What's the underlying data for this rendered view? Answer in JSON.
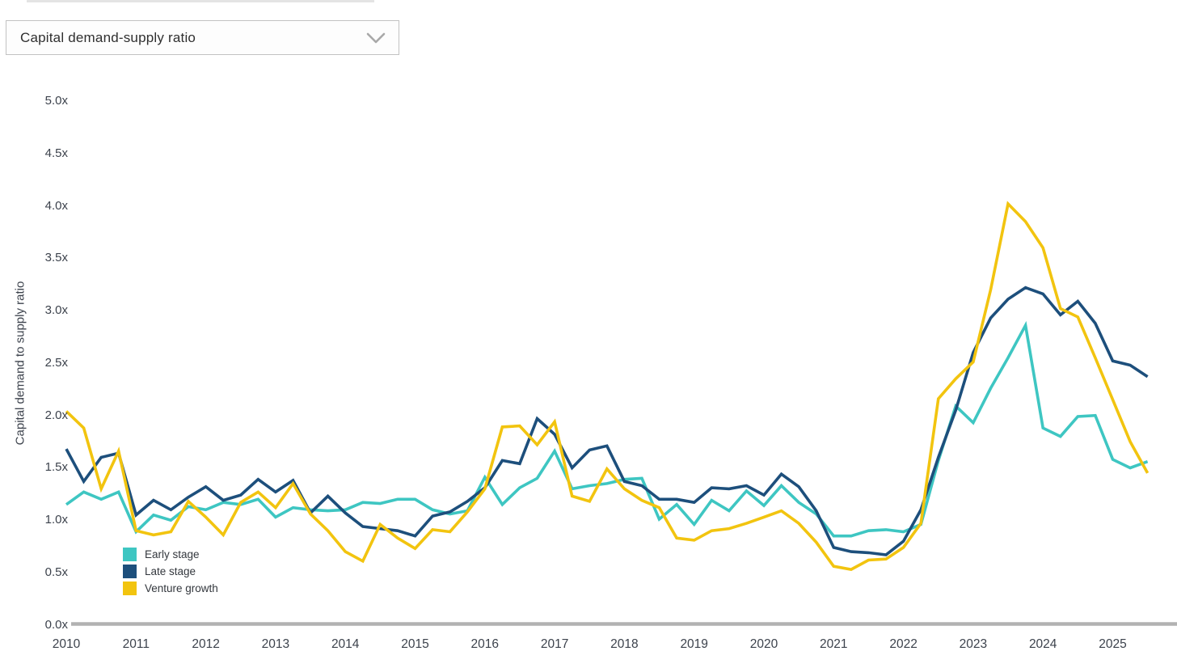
{
  "dropdown": {
    "value": "Capital demand-supply ratio",
    "chevron_icon": "chevron-down",
    "border_color": "#c2c2c2",
    "chevron_color": "#a9a9a9"
  },
  "chart_data": {
    "type": "line",
    "title": "",
    "xlabel": "",
    "ylabel": "Capital demand to supply ratio",
    "x_unit": "quarterly",
    "x_start": 2010.0,
    "x_step": 0.25,
    "x_end": 2025.5,
    "x_tick_labels": [
      "2010",
      "2011",
      "2012",
      "2013",
      "2014",
      "2015",
      "2016",
      "2017",
      "2018",
      "2019",
      "2020",
      "2021",
      "2022",
      "2023",
      "2024",
      "2025"
    ],
    "y_tick_labels": [
      "0.0x",
      "0.5x",
      "1.0x",
      "1.5x",
      "2.0x",
      "2.5x",
      "3.0x",
      "3.5x",
      "4.0x",
      "4.5x",
      "5.0x"
    ],
    "y_tick_values": [
      0,
      0.5,
      1.0,
      1.5,
      2.0,
      2.5,
      3.0,
      3.5,
      4.0,
      4.5,
      5.0
    ],
    "ylim": [
      0,
      5
    ],
    "grid": false,
    "legend_position": "bottom-left-inside",
    "axis_line_color": "#b2b2b2",
    "label_color": "#3c424c",
    "series": [
      {
        "name": "Early stage",
        "color": "#3ec6c2",
        "values": [
          1.15,
          1.27,
          1.2,
          1.27,
          0.89,
          1.05,
          1.0,
          1.13,
          1.1,
          1.17,
          1.15,
          1.2,
          1.03,
          1.12,
          1.1,
          1.09,
          1.1,
          1.17,
          1.16,
          1.2,
          1.2,
          1.1,
          1.06,
          1.09,
          1.41,
          1.15,
          1.31,
          1.4,
          1.66,
          1.3,
          1.33,
          1.35,
          1.39,
          1.4,
          1.01,
          1.15,
          0.96,
          1.19,
          1.09,
          1.28,
          1.14,
          1.33,
          1.17,
          1.06,
          0.85,
          0.85,
          0.9,
          0.91,
          0.89,
          0.96,
          1.57,
          2.09,
          1.93,
          2.26,
          2.55,
          2.86,
          1.88,
          1.8,
          1.99,
          2.0,
          1.58,
          1.5,
          1.56
        ]
      },
      {
        "name": "Late stage",
        "color": "#1d4f7c",
        "values": [
          1.68,
          1.37,
          1.6,
          1.64,
          1.05,
          1.19,
          1.1,
          1.22,
          1.32,
          1.19,
          1.24,
          1.39,
          1.27,
          1.38,
          1.07,
          1.23,
          1.07,
          0.94,
          0.92,
          0.9,
          0.85,
          1.04,
          1.08,
          1.18,
          1.31,
          1.57,
          1.54,
          1.97,
          1.82,
          1.5,
          1.67,
          1.71,
          1.37,
          1.33,
          1.2,
          1.2,
          1.17,
          1.31,
          1.3,
          1.33,
          1.24,
          1.44,
          1.32,
          1.09,
          0.74,
          0.7,
          0.69,
          0.67,
          0.8,
          1.1,
          1.6,
          2.05,
          2.6,
          2.93,
          3.11,
          3.22,
          3.16,
          2.96,
          3.09,
          2.88,
          2.52,
          2.48,
          2.37
        ]
      },
      {
        "name": "Venture growth",
        "color": "#f2c40f",
        "values": [
          2.04,
          1.88,
          1.3,
          1.66,
          0.9,
          0.86,
          0.89,
          1.18,
          1.03,
          0.86,
          1.17,
          1.27,
          1.12,
          1.35,
          1.06,
          0.9,
          0.7,
          0.61,
          0.96,
          0.83,
          0.73,
          0.91,
          0.89,
          1.08,
          1.3,
          1.89,
          1.9,
          1.72,
          1.94,
          1.23,
          1.18,
          1.49,
          1.3,
          1.19,
          1.12,
          0.83,
          0.81,
          0.9,
          0.92,
          0.97,
          1.03,
          1.09,
          0.97,
          0.79,
          0.56,
          0.53,
          0.62,
          0.63,
          0.74,
          0.97,
          2.16,
          2.35,
          2.51,
          3.2,
          4.02,
          3.85,
          3.6,
          3.02,
          2.94,
          2.55,
          2.15,
          1.75,
          1.45
        ]
      }
    ]
  }
}
